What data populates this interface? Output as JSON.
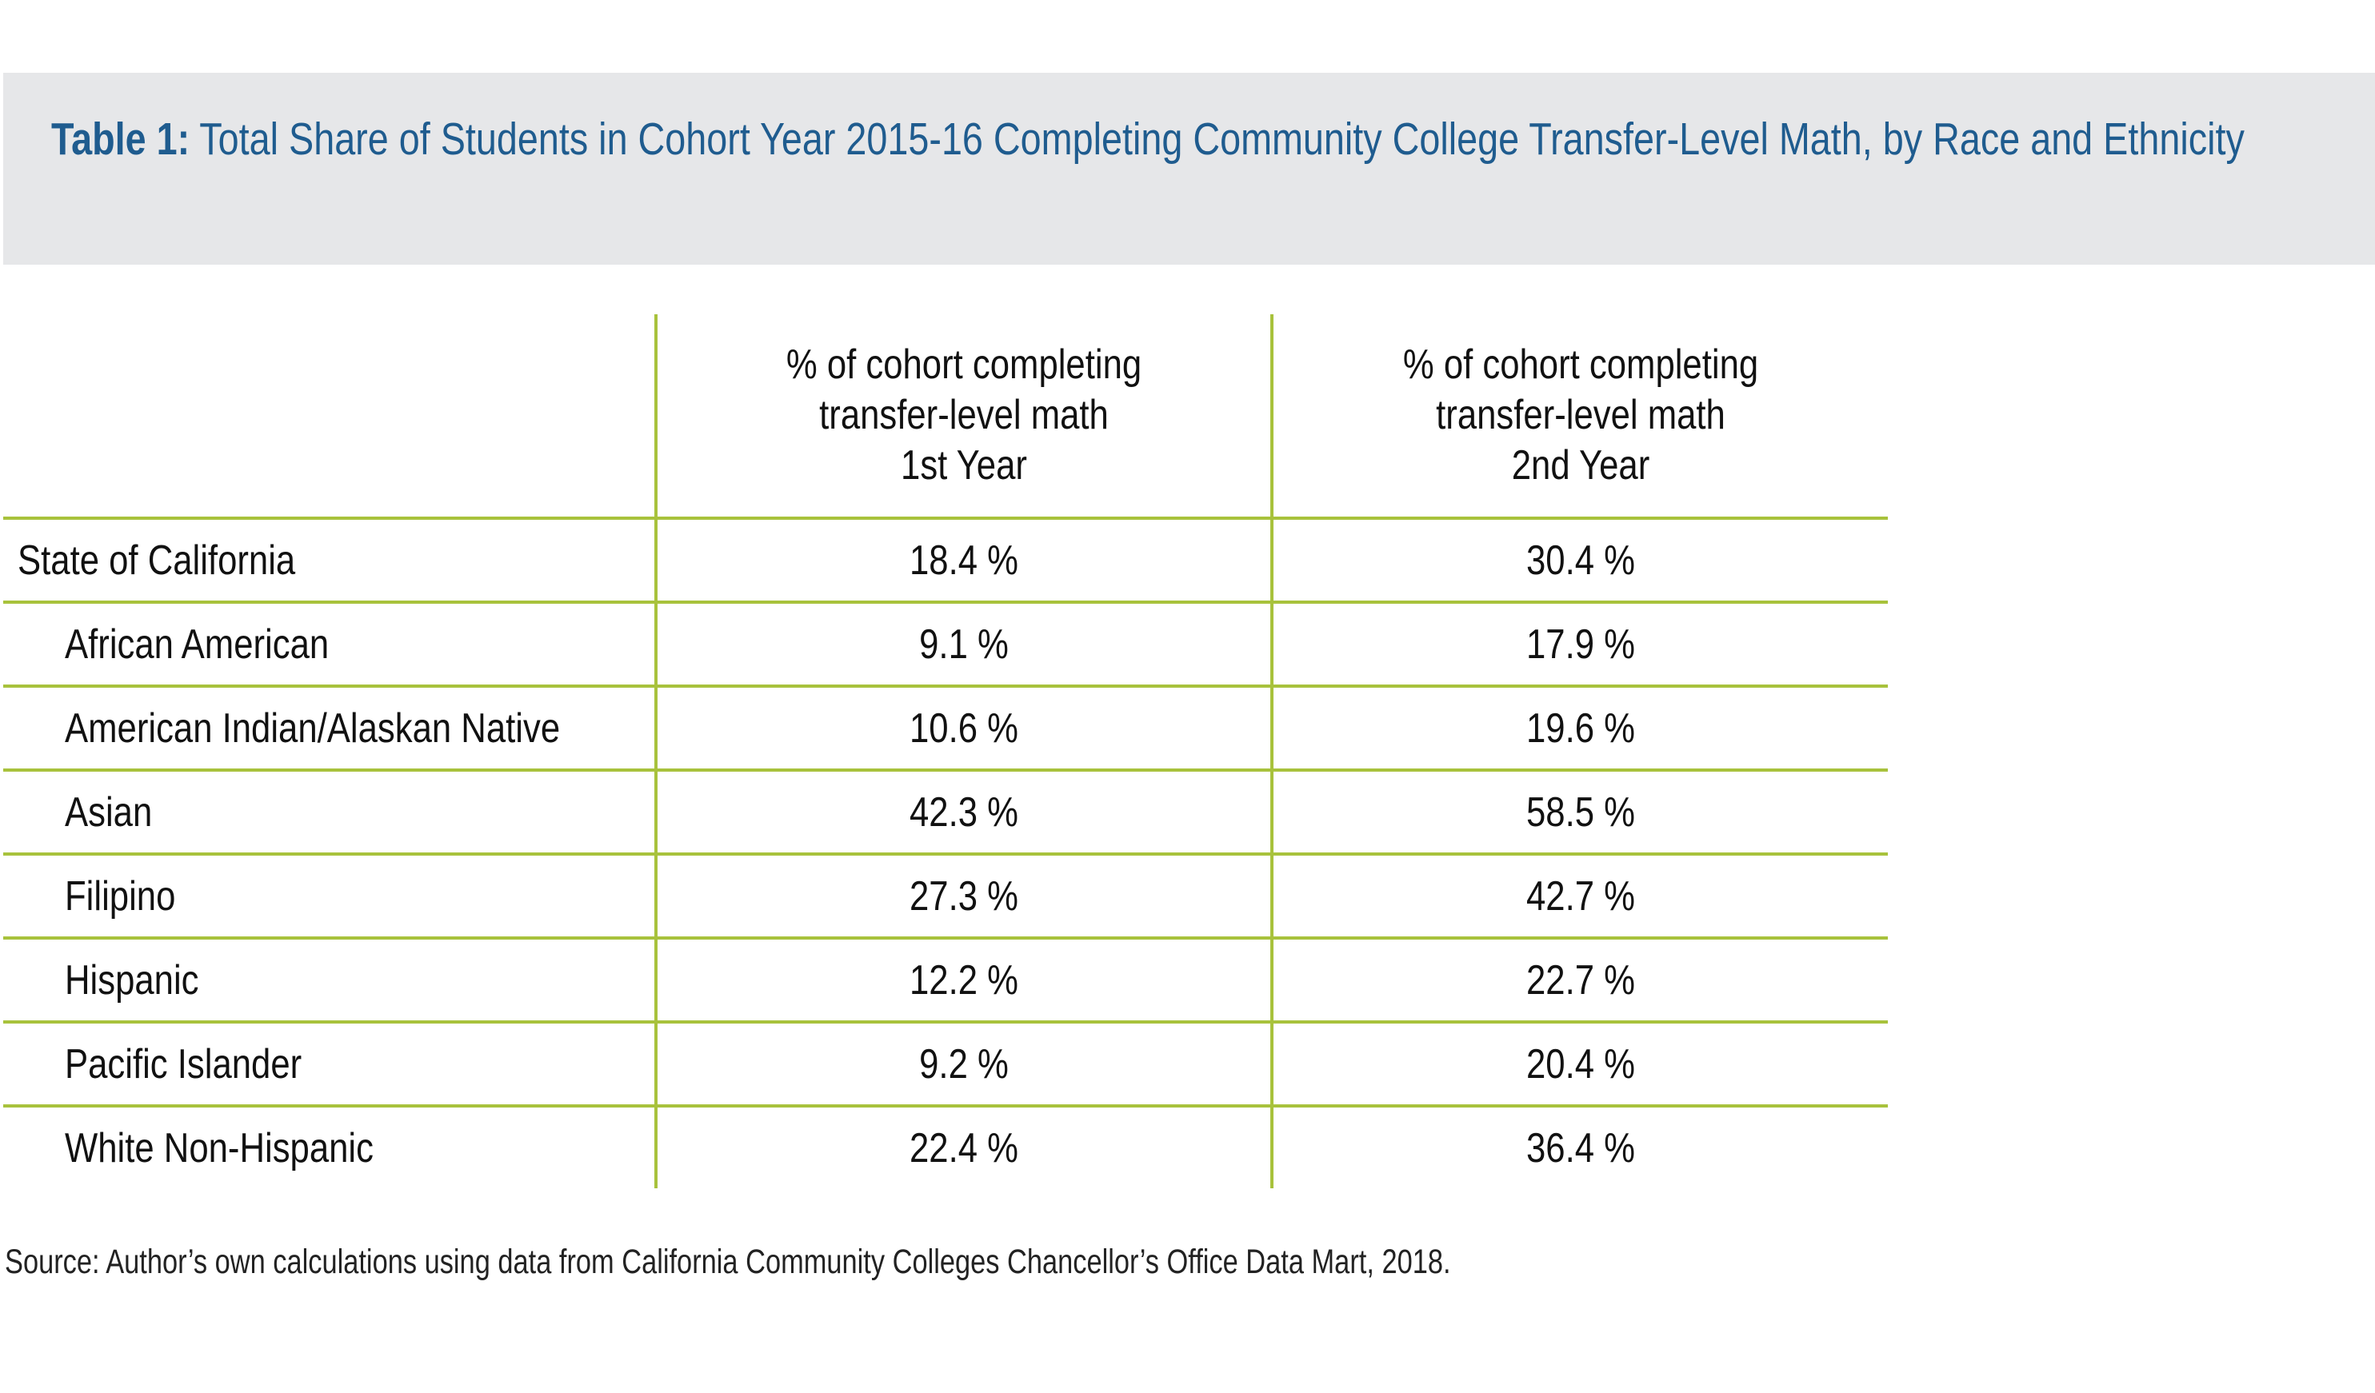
{
  "title": {
    "lead": "Table 1:",
    "text": "Total Share of Students in Cohort Year 2015-16 Completing Community College Transfer-Level Math, by Race and Ethnicity"
  },
  "table": {
    "header_stub": "",
    "columns": [
      "% of cohort completing\ntransfer-level math\n1st Year",
      "% of cohort completing\ntransfer-level math\n2nd Year"
    ],
    "rows": [
      {
        "label": "State of California",
        "y1": "18.4 %",
        "y2": "30.4 %"
      },
      {
        "label": "African American",
        "y1": "9.1 %",
        "y2": "17.9 %"
      },
      {
        "label": "American Indian/Alaskan Native",
        "y1": "10.6 %",
        "y2": "19.6 %"
      },
      {
        "label": "Asian",
        "y1": "42.3 %",
        "y2": "58.5 %"
      },
      {
        "label": "Filipino",
        "y1": "27.3 %",
        "y2": "42.7 %"
      },
      {
        "label": "Hispanic",
        "y1": "12.2 %",
        "y2": "22.7 %"
      },
      {
        "label": "Pacific Islander",
        "y1": "9.2 %",
        "y2": "20.4 %"
      },
      {
        "label": "White Non-Hispanic",
        "y1": "22.4 %",
        "y2": "36.4 %"
      }
    ]
  },
  "source": "Source: Author’s own calculations using data from California Community Colleges Chancellor’s Office Data Mart, 2018.",
  "colors": {
    "title_text": "#1f5c8f",
    "title_band": "#e6e7e9",
    "rule_green": "#a8c23c",
    "body_text": "#111111"
  }
}
